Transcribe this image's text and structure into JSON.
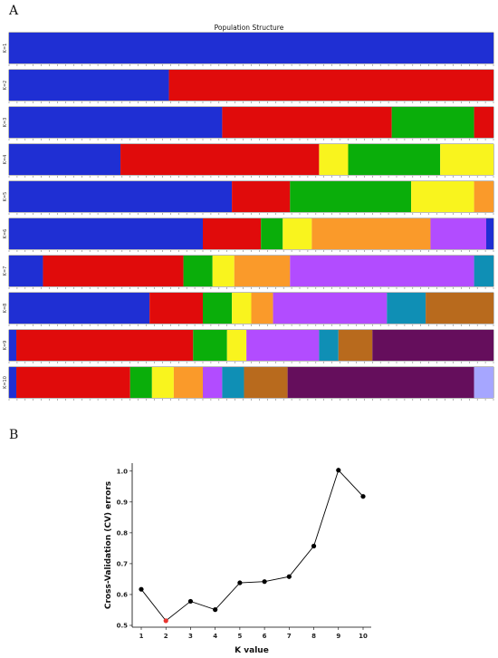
{
  "figure": {
    "panel_a_label": "A",
    "panel_b_label": "B"
  },
  "structure": {
    "title": "Population Structure",
    "colors": {
      "blue": "#1f2fd3",
      "red": "#e00b0b",
      "green": "#0aae0a",
      "yellow": "#f9f41e",
      "orange": "#fa9a2a",
      "purple": "#b24cff",
      "teal": "#0f8fb5",
      "brown": "#b86a1d",
      "darkpurple": "#650e5c",
      "lavender": "#a6a6ff"
    },
    "rows": [
      {
        "label": "K=1",
        "segments": [
          {
            "color": "blue",
            "from": 0.0,
            "to": 1.0
          }
        ]
      },
      {
        "label": "K=2",
        "segments": [
          {
            "color": "blue",
            "from": 0.0,
            "to": 0.33
          },
          {
            "color": "red",
            "from": 0.33,
            "to": 1.0
          }
        ]
      },
      {
        "label": "K=3",
        "segments": [
          {
            "color": "blue",
            "from": 0.0,
            "to": 0.44
          },
          {
            "color": "red",
            "from": 0.44,
            "to": 0.79
          },
          {
            "color": "green",
            "from": 0.79,
            "to": 0.96
          },
          {
            "color": "red",
            "from": 0.96,
            "to": 1.0
          }
        ]
      },
      {
        "label": "K=4",
        "segments": [
          {
            "color": "blue",
            "from": 0.0,
            "to": 0.23
          },
          {
            "color": "red",
            "from": 0.23,
            "to": 0.6
          },
          {
            "color": "red",
            "from": 0.6,
            "to": 0.64
          },
          {
            "color": "yellow",
            "from": 0.64,
            "to": 0.7
          },
          {
            "color": "green",
            "from": 0.7,
            "to": 0.89
          },
          {
            "color": "yellow",
            "from": 0.89,
            "to": 1.0
          }
        ]
      },
      {
        "label": "K=5",
        "segments": [
          {
            "color": "blue",
            "from": 0.0,
            "to": 0.46
          },
          {
            "color": "red",
            "from": 0.46,
            "to": 0.58
          },
          {
            "color": "green",
            "from": 0.58,
            "to": 0.83
          },
          {
            "color": "yellow",
            "from": 0.83,
            "to": 0.96
          },
          {
            "color": "orange",
            "from": 0.96,
            "to": 1.0
          }
        ]
      },
      {
        "label": "K=6",
        "segments": [
          {
            "color": "blue",
            "from": 0.0,
            "to": 0.4
          },
          {
            "color": "red",
            "from": 0.4,
            "to": 0.52
          },
          {
            "color": "green",
            "from": 0.52,
            "to": 0.565
          },
          {
            "color": "yellow",
            "from": 0.565,
            "to": 0.625
          },
          {
            "color": "orange",
            "from": 0.625,
            "to": 0.87
          },
          {
            "color": "purple",
            "from": 0.87,
            "to": 0.985
          },
          {
            "color": "blue",
            "from": 0.985,
            "to": 1.0
          }
        ]
      },
      {
        "label": "K=7",
        "segments": [
          {
            "color": "blue",
            "from": 0.0,
            "to": 0.07
          },
          {
            "color": "red",
            "from": 0.07,
            "to": 0.36
          },
          {
            "color": "green",
            "from": 0.36,
            "to": 0.42
          },
          {
            "color": "yellow",
            "from": 0.42,
            "to": 0.465
          },
          {
            "color": "orange",
            "from": 0.465,
            "to": 0.58
          },
          {
            "color": "purple",
            "from": 0.58,
            "to": 0.96
          },
          {
            "color": "teal",
            "from": 0.96,
            "to": 1.0
          }
        ]
      },
      {
        "label": "K=8",
        "segments": [
          {
            "color": "blue",
            "from": 0.0,
            "to": 0.29
          },
          {
            "color": "red",
            "from": 0.29,
            "to": 0.4
          },
          {
            "color": "green",
            "from": 0.4,
            "to": 0.46
          },
          {
            "color": "yellow",
            "from": 0.46,
            "to": 0.5
          },
          {
            "color": "orange",
            "from": 0.5,
            "to": 0.545
          },
          {
            "color": "purple",
            "from": 0.545,
            "to": 0.78
          },
          {
            "color": "teal",
            "from": 0.78,
            "to": 0.86
          },
          {
            "color": "brown",
            "from": 0.86,
            "to": 1.0
          }
        ]
      },
      {
        "label": "K=9",
        "segments": [
          {
            "color": "blue",
            "from": 0.0,
            "to": 0.015
          },
          {
            "color": "red",
            "from": 0.015,
            "to": 0.38
          },
          {
            "color": "green",
            "from": 0.38,
            "to": 0.45
          },
          {
            "color": "yellow",
            "from": 0.45,
            "to": 0.49
          },
          {
            "color": "purple",
            "from": 0.49,
            "to": 0.64
          },
          {
            "color": "teal",
            "from": 0.64,
            "to": 0.68
          },
          {
            "color": "brown",
            "from": 0.68,
            "to": 0.75
          },
          {
            "color": "darkpurple",
            "from": 0.75,
            "to": 1.0
          }
        ]
      },
      {
        "label": "K=10",
        "segments": [
          {
            "color": "blue",
            "from": 0.0,
            "to": 0.015
          },
          {
            "color": "red",
            "from": 0.015,
            "to": 0.25
          },
          {
            "color": "green",
            "from": 0.25,
            "to": 0.295
          },
          {
            "color": "yellow",
            "from": 0.295,
            "to": 0.34
          },
          {
            "color": "orange",
            "from": 0.34,
            "to": 0.4
          },
          {
            "color": "purple",
            "from": 0.4,
            "to": 0.44
          },
          {
            "color": "teal",
            "from": 0.44,
            "to": 0.485
          },
          {
            "color": "brown",
            "from": 0.485,
            "to": 0.575
          },
          {
            "color": "darkpurple",
            "from": 0.575,
            "to": 0.96
          },
          {
            "color": "lavender",
            "from": 0.96,
            "to": 1.0
          }
        ]
      }
    ]
  },
  "chart_data": {
    "type": "line",
    "title": "",
    "xlabel": "K value",
    "ylabel": "Cross-Validation (CV) errors",
    "x": [
      1,
      2,
      3,
      4,
      5,
      6,
      7,
      8,
      9,
      10
    ],
    "series": [
      {
        "values": [
          0.617,
          0.515,
          0.578,
          0.551,
          0.638,
          0.642,
          0.658,
          0.757,
          1.003,
          0.918
        ],
        "highlight_index": 1
      }
    ],
    "xticks": [
      "1",
      "2",
      "3",
      "4",
      "5",
      "6",
      "7",
      "8",
      "9",
      "10"
    ],
    "yticks": [
      "0.5",
      "0.6",
      "0.7",
      "0.8",
      "0.9",
      "1.0"
    ],
    "ylim": [
      0.5,
      1.02
    ],
    "xlim": [
      1,
      10
    ],
    "grid": false,
    "colors": {
      "line": "#000000",
      "point": "#000000",
      "highlight": "#e8352f"
    }
  }
}
